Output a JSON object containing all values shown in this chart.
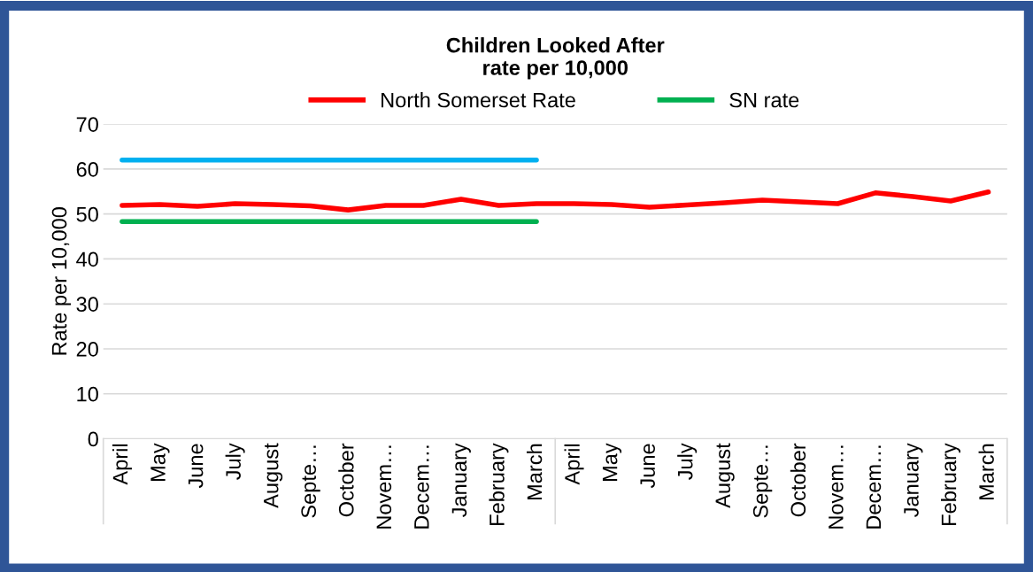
{
  "chart_data": {
    "type": "line",
    "title": "Children Looked After\nrate per 10,000",
    "ylabel": "Rate per 10,000",
    "categories": [
      "April",
      "May",
      "June",
      "July",
      "August",
      "Septe…",
      "October",
      "Novem…",
      "Decem…",
      "January",
      "February",
      "March",
      "April",
      "May",
      "June",
      "July",
      "August",
      "Septe…",
      "October",
      "Novem…",
      "Decem…",
      "January",
      "February",
      "March"
    ],
    "series": [
      {
        "name": "North Somerset Rate",
        "color": "#ff0000",
        "values": [
          51.9,
          52.1,
          51.7,
          52.3,
          52.1,
          51.8,
          50.9,
          51.9,
          51.9,
          53.3,
          51.9,
          52.3,
          52.3,
          52.1,
          51.5,
          52.0,
          52.5,
          53.1,
          52.7,
          52.3,
          54.7,
          53.9,
          52.9,
          54.9
        ]
      },
      {
        "name": "SN rate",
        "color": "#00b050",
        "values": [
          48.3,
          48.3,
          48.3,
          48.3,
          48.3,
          48.3,
          48.3,
          48.3,
          48.3,
          48.3,
          48.3,
          48.3,
          null,
          null,
          null,
          null,
          null,
          null,
          null,
          null,
          null,
          null,
          null,
          null
        ]
      },
      {
        "color": "#00b0f0",
        "values": [
          62,
          62,
          62,
          62,
          62,
          62,
          62,
          62,
          62,
          62,
          62,
          62,
          null,
          null,
          null,
          null,
          null,
          null,
          null,
          null,
          null,
          null,
          null,
          null
        ]
      }
    ],
    "ylim": [
      0,
      70
    ],
    "yticks": [
      0,
      10,
      20,
      30,
      40,
      50,
      60,
      70
    ],
    "grid": "y",
    "legend": "top",
    "marker": "none",
    "line_style": "solid"
  }
}
